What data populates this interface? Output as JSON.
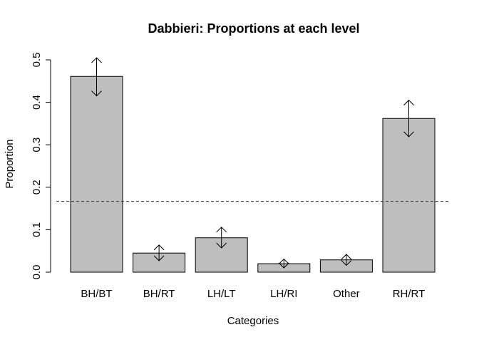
{
  "chart_data": {
    "type": "bar",
    "title": "Dabbieri: Proportions at each level",
    "xlabel": "Categories",
    "ylabel": "Proportion",
    "categories": [
      "BH/BT",
      "BH/RT",
      "LH/LT",
      "LH/RI",
      "Other",
      "RH/RT"
    ],
    "values": [
      0.461,
      0.045,
      0.081,
      0.02,
      0.029,
      0.362
    ],
    "error_lower": [
      0.415,
      0.027,
      0.057,
      0.01,
      0.016,
      0.319
    ],
    "error_upper": [
      0.505,
      0.064,
      0.106,
      0.031,
      0.042,
      0.405
    ],
    "reference_line": 0.1667,
    "ylim": [
      0,
      0.5
    ],
    "yticks": [
      0.0,
      0.1,
      0.2,
      0.3,
      0.4,
      0.5
    ],
    "ytick_labels": [
      "0.0",
      "0.1",
      "0.2",
      "0.3",
      "0.4",
      "0.5"
    ],
    "grid": false,
    "bar_color": "#bebebe",
    "reference_line_style": "dashed"
  }
}
